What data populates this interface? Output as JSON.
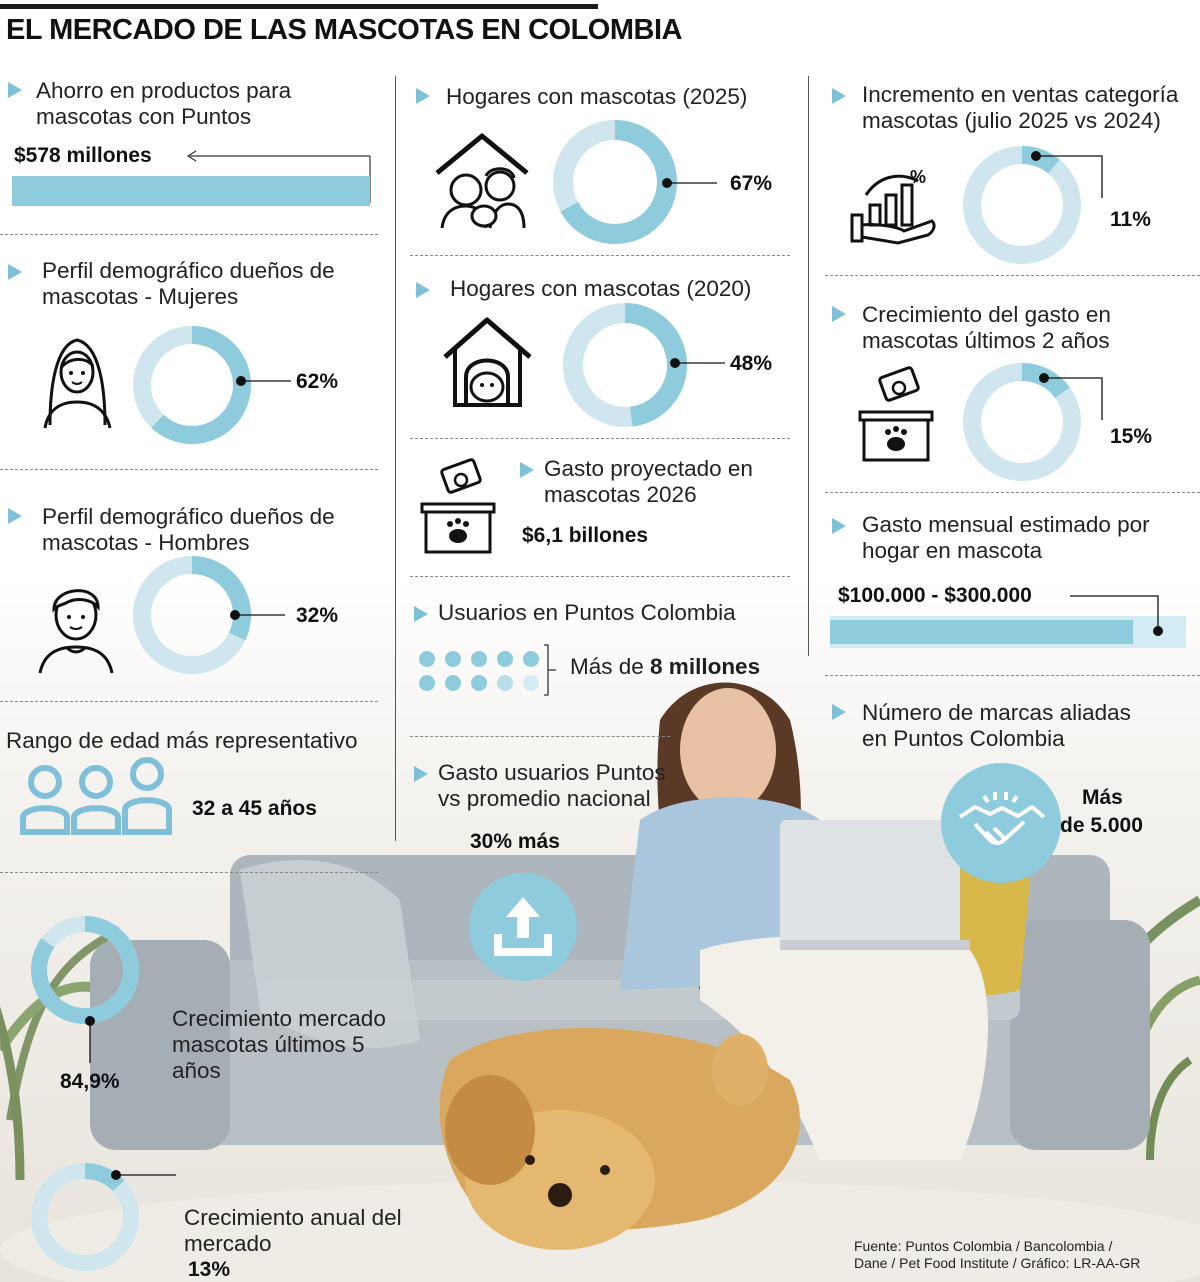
{
  "title": "EL MERCADO DE LAS MASCOTAS EN COLOMBIA",
  "colors": {
    "ring_light": "#cfe6ef",
    "ring_dark": "#8ecbdd",
    "accent": "#7fc0d8",
    "text": "#1f1f1f"
  },
  "col1": {
    "ahorro": {
      "label": "Ahorro en productos para mascotas con Puntos",
      "value": "$578 millones"
    },
    "mujeres": {
      "label": "Perfil demográfico dueños de mascotas - Mujeres",
      "value": "62%",
      "fraction": 0.62,
      "icon": "woman-icon"
    },
    "hombres": {
      "label": "Perfil demográfico dueños de mascotas - Hombres",
      "value": "32%",
      "fraction": 0.32,
      "icon": "man-icon"
    },
    "edad": {
      "label": "Rango de edad más representativo",
      "value": "32 a 45 años",
      "icon": "people-icon"
    },
    "crec5": {
      "label": "Crecimiento mercado mascotas últimos 5 años",
      "value": "84,9%",
      "fraction": 0.849
    },
    "anual": {
      "label": "Crecimiento anual del mercado",
      "value": "13%",
      "fraction": 0.13
    }
  },
  "col2": {
    "h2025": {
      "label": "Hogares con mascotas (2025)",
      "value": "67%",
      "fraction": 0.67,
      "icon": "family-house-icon"
    },
    "h2020": {
      "label": "Hogares con mascotas (2020)",
      "value": "48%",
      "fraction": 0.48,
      "icon": "dog-house-icon"
    },
    "gasto2026": {
      "label": "Gasto proyectado en mascotas 2026",
      "value": "$6,1 billones",
      "icon": "money-box-icon"
    },
    "usuarios": {
      "label": "Usuarios en Puntos Colombia",
      "prefix": "Más de ",
      "value": "8 millones",
      "icon": "dots-icon"
    },
    "gastoUsuarios": {
      "label": "Gasto usuarios Puntos vs promedio nacional",
      "value": "30% más",
      "icon": "upload-icon"
    }
  },
  "col3": {
    "incremento": {
      "label": "Incremento en ventas categoría mascotas (julio 2025 vs 2024)",
      "value": "11%",
      "fraction": 0.11,
      "icon": "growth-chart-icon"
    },
    "crecGasto": {
      "label": "Crecimiento del gasto en mascotas últimos 2 años",
      "value": "15%",
      "fraction": 0.15,
      "icon": "money-box-icon"
    },
    "mensual": {
      "label": "Gasto mensual estimado por hogar en mascota",
      "value": "$100.000 - $300.000",
      "fraction": 0.85
    },
    "marcas": {
      "label": "Número de marcas aliadas en Puntos Colombia",
      "value_line1": "Más",
      "value_line2": "de 5.000",
      "icon": "handshake-icon"
    }
  },
  "source": {
    "line1": "Fuente: Puntos Colombia / Bancolombia /",
    "line2": "Dane / Pet Food Institute / Gráfico: LR-AA-GR"
  }
}
